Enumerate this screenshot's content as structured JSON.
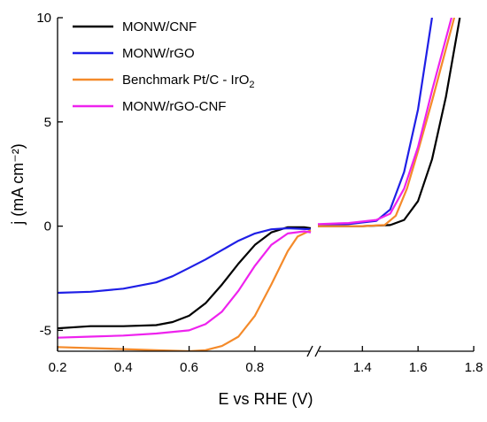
{
  "chart_data": {
    "type": "line",
    "xlabel": "E vs RHE (V)",
    "ylabel": "j (mA cm⁻²)",
    "ylim": [
      -6,
      10
    ],
    "x_axis_break": true,
    "segments": [
      {
        "xlim": [
          0.2,
          0.97
        ],
        "ticks": [
          0.2,
          0.4,
          0.6,
          0.8
        ],
        "tick_labels": [
          "0.2",
          "0.4",
          "0.6",
          "0.8"
        ]
      },
      {
        "xlim": [
          1.24,
          1.8
        ],
        "ticks": [
          1.4,
          1.6,
          1.8
        ],
        "tick_labels": [
          "1.4",
          "1.6",
          "1.8"
        ]
      }
    ],
    "y_ticks": [
      -5,
      0,
      5,
      10
    ],
    "y_tick_labels": [
      "-5",
      "0",
      "5",
      "10"
    ],
    "legend_position": "top-left",
    "series": [
      {
        "name": "MONW/CNF",
        "color": "#000000",
        "segments": [
          [
            [
              0.2,
              -4.9
            ],
            [
              0.3,
              -4.8
            ],
            [
              0.4,
              -4.8
            ],
            [
              0.5,
              -4.75
            ],
            [
              0.55,
              -4.6
            ],
            [
              0.6,
              -4.3
            ],
            [
              0.65,
              -3.7
            ],
            [
              0.7,
              -2.8
            ],
            [
              0.75,
              -1.8
            ],
            [
              0.8,
              -0.9
            ],
            [
              0.85,
              -0.3
            ],
            [
              0.9,
              -0.05
            ],
            [
              0.95,
              -0.05
            ],
            [
              0.97,
              -0.1
            ]
          ],
          [
            [
              1.24,
              0.0
            ],
            [
              1.4,
              0.0
            ],
            [
              1.5,
              0.05
            ],
            [
              1.55,
              0.3
            ],
            [
              1.6,
              1.2
            ],
            [
              1.65,
              3.2
            ],
            [
              1.7,
              6.2
            ],
            [
              1.75,
              10.0
            ]
          ]
        ]
      },
      {
        "name": "MONW/rGO",
        "color": "#1f1fe6",
        "segments": [
          [
            [
              0.2,
              -3.2
            ],
            [
              0.3,
              -3.15
            ],
            [
              0.4,
              -3.0
            ],
            [
              0.5,
              -2.7
            ],
            [
              0.55,
              -2.4
            ],
            [
              0.6,
              -2.0
            ],
            [
              0.65,
              -1.6
            ],
            [
              0.7,
              -1.15
            ],
            [
              0.75,
              -0.7
            ],
            [
              0.8,
              -0.35
            ],
            [
              0.85,
              -0.15
            ],
            [
              0.9,
              -0.1
            ],
            [
              0.97,
              -0.15
            ]
          ],
          [
            [
              1.24,
              0.05
            ],
            [
              1.35,
              0.1
            ],
            [
              1.45,
              0.25
            ],
            [
              1.5,
              0.8
            ],
            [
              1.55,
              2.6
            ],
            [
              1.6,
              5.6
            ],
            [
              1.65,
              10.0
            ]
          ]
        ]
      },
      {
        "name": "Benchmark Pt/C - IrO",
        "name_subscript": "2",
        "color": "#f48a2a",
        "segments": [
          [
            [
              0.2,
              -5.8
            ],
            [
              0.3,
              -5.85
            ],
            [
              0.4,
              -5.9
            ],
            [
              0.5,
              -5.95
            ],
            [
              0.6,
              -6.0
            ],
            [
              0.65,
              -5.95
            ],
            [
              0.7,
              -5.75
            ],
            [
              0.75,
              -5.3
            ],
            [
              0.8,
              -4.3
            ],
            [
              0.85,
              -2.8
            ],
            [
              0.9,
              -1.2
            ],
            [
              0.93,
              -0.5
            ],
            [
              0.97,
              -0.2
            ]
          ],
          [
            [
              1.24,
              0.0
            ],
            [
              1.4,
              0.0
            ],
            [
              1.48,
              0.05
            ],
            [
              1.52,
              0.5
            ],
            [
              1.56,
              1.8
            ],
            [
              1.6,
              3.6
            ],
            [
              1.65,
              6.0
            ],
            [
              1.7,
              8.5
            ],
            [
              1.73,
              10.0
            ]
          ]
        ]
      },
      {
        "name": "MONW/rGO-CNF",
        "color": "#ee22ee",
        "segments": [
          [
            [
              0.2,
              -5.35
            ],
            [
              0.3,
              -5.3
            ],
            [
              0.4,
              -5.25
            ],
            [
              0.5,
              -5.15
            ],
            [
              0.6,
              -5.0
            ],
            [
              0.65,
              -4.7
            ],
            [
              0.7,
              -4.1
            ],
            [
              0.75,
              -3.1
            ],
            [
              0.8,
              -1.9
            ],
            [
              0.85,
              -0.9
            ],
            [
              0.9,
              -0.35
            ],
            [
              0.95,
              -0.25
            ],
            [
              0.97,
              -0.3
            ]
          ],
          [
            [
              1.24,
              0.1
            ],
            [
              1.35,
              0.15
            ],
            [
              1.45,
              0.3
            ],
            [
              1.5,
              0.6
            ],
            [
              1.55,
              1.8
            ],
            [
              1.6,
              3.8
            ],
            [
              1.65,
              6.5
            ],
            [
              1.7,
              9.0
            ],
            [
              1.72,
              10.0
            ]
          ]
        ]
      }
    ]
  }
}
